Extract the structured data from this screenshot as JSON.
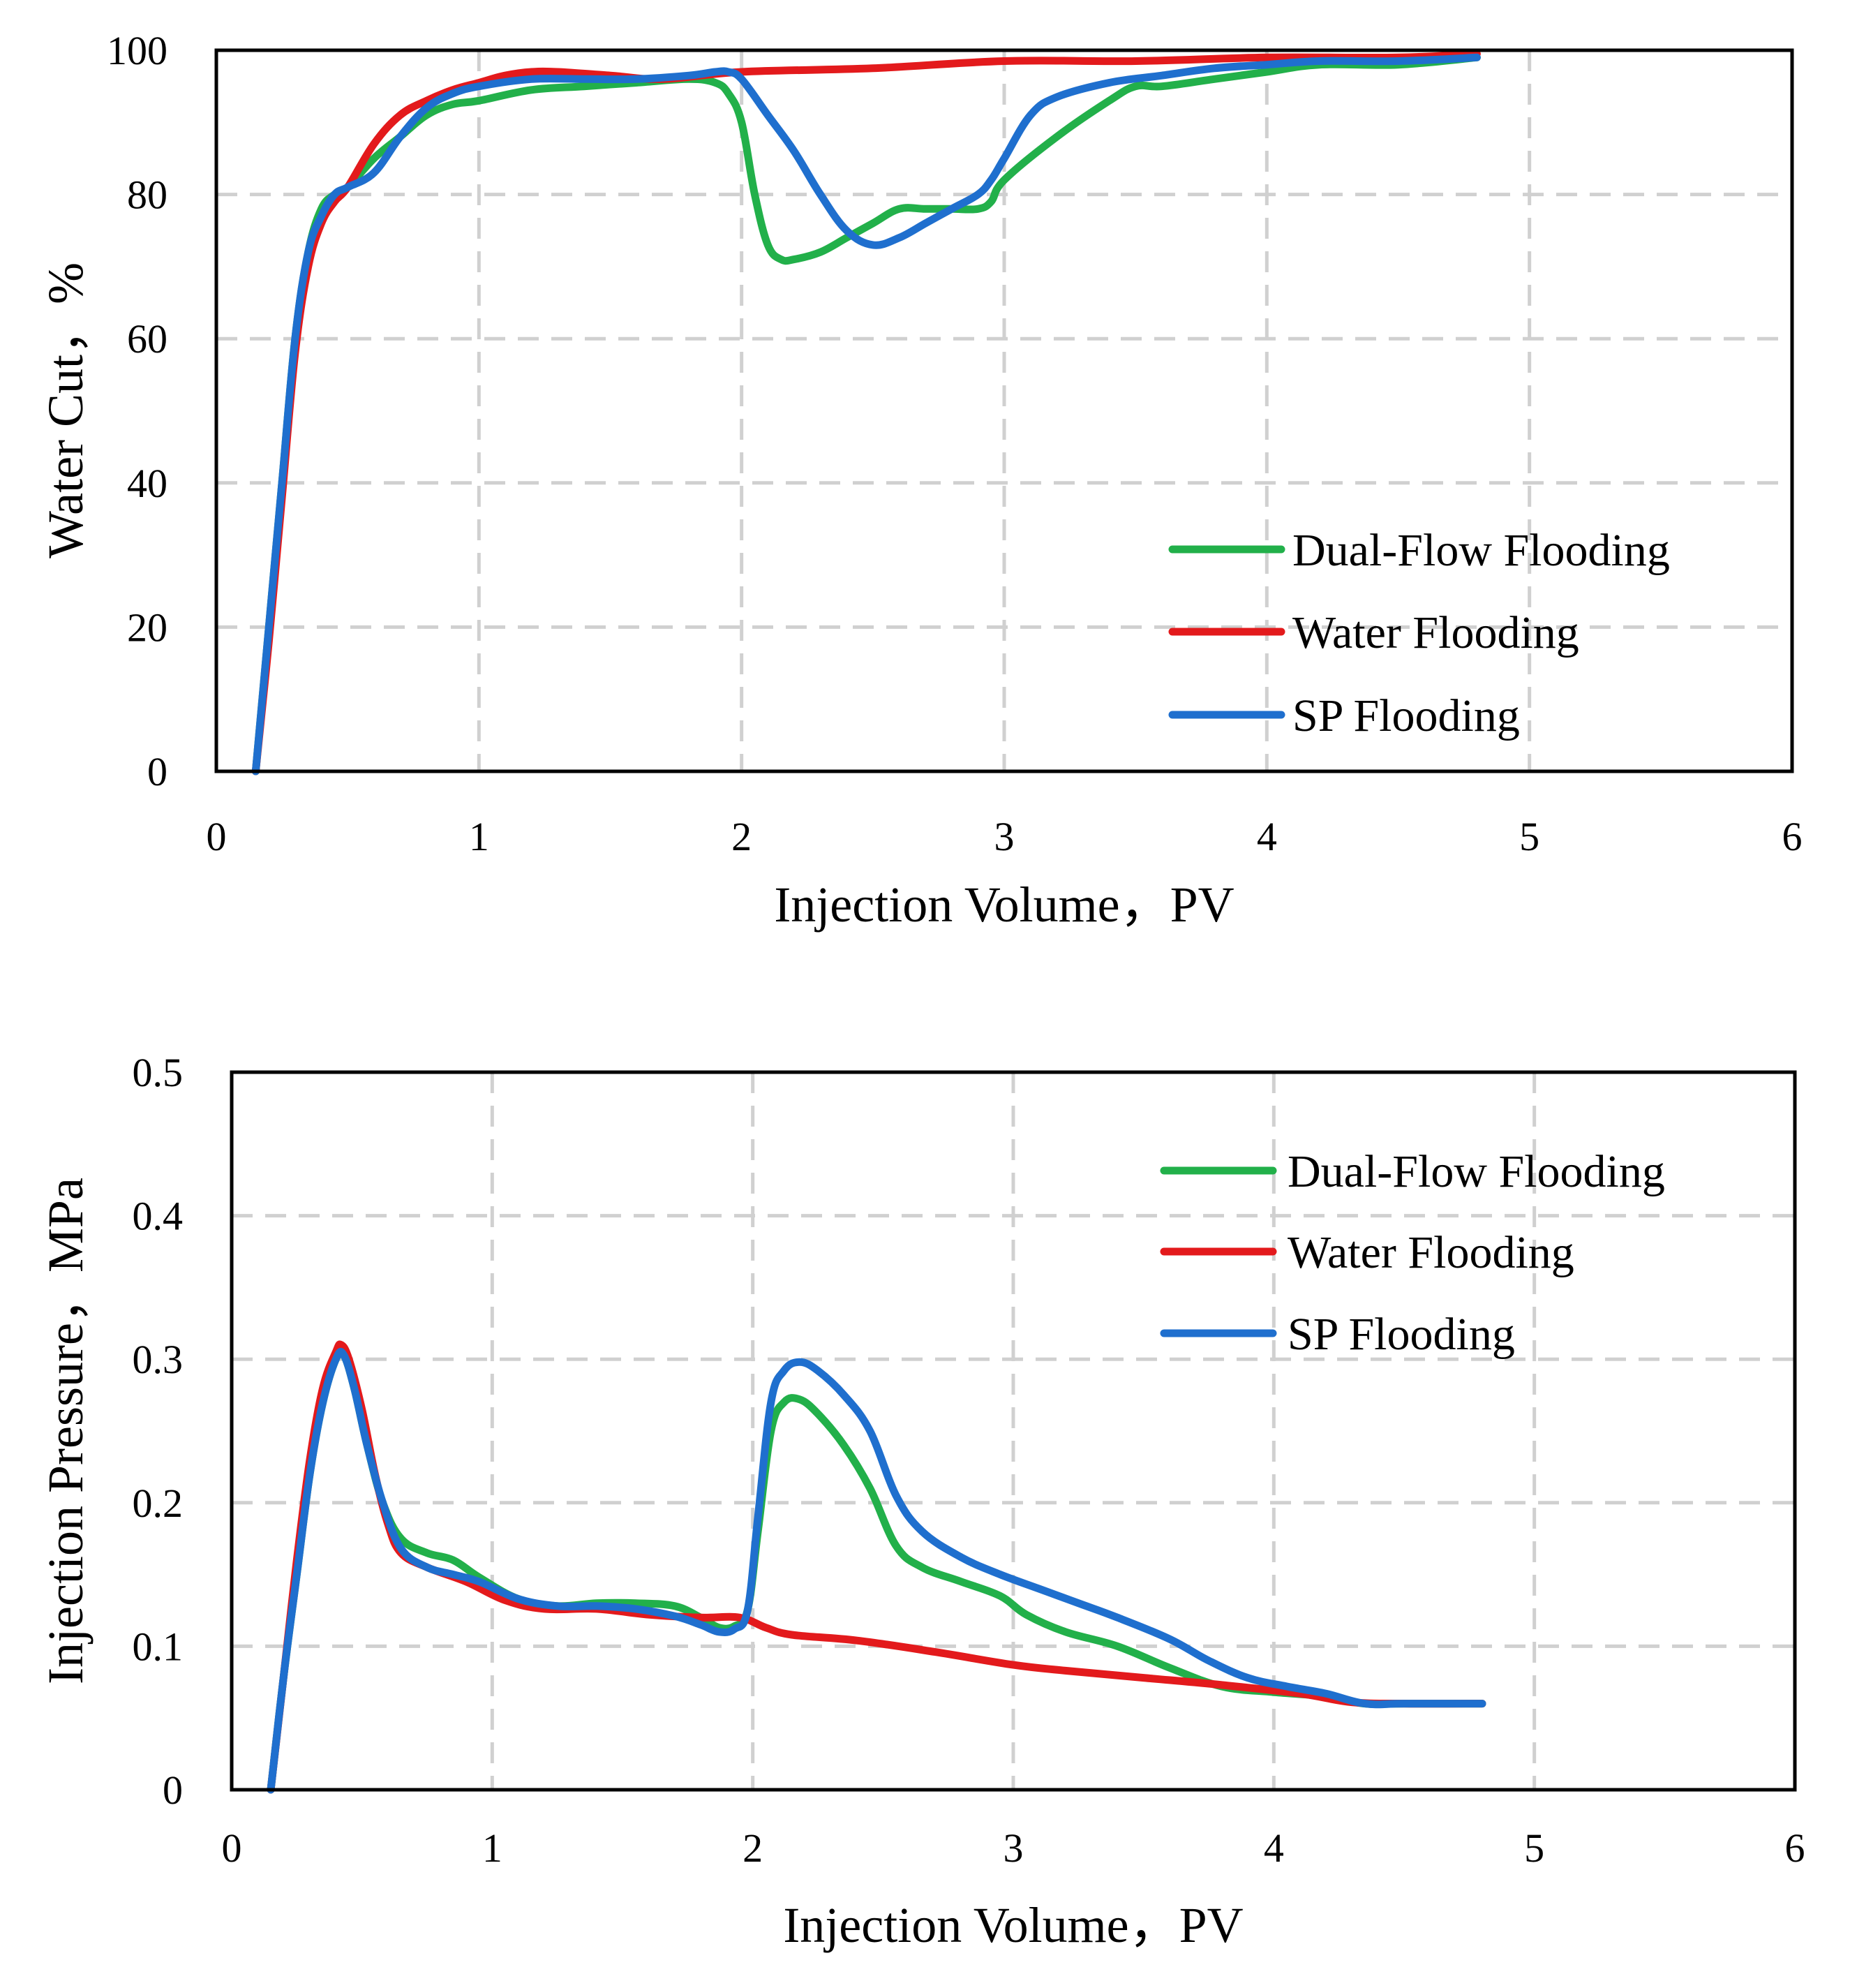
{
  "colors": {
    "dual": "#22b04a",
    "water": "#e31a1c",
    "sp": "#1f6fce"
  },
  "chart_data": [
    {
      "type": "line",
      "title": "",
      "xlabel": "Injection Volume，PV",
      "ylabel": "Water Cut，%",
      "xlim": [
        0,
        6
      ],
      "ylim": [
        0,
        100
      ],
      "xticks": [
        "0",
        "1",
        "2",
        "3",
        "4",
        "5",
        "6"
      ],
      "yticks": [
        "0",
        "20",
        "40",
        "60",
        "80",
        "100"
      ],
      "xtick_values": [
        0,
        1,
        2,
        3,
        4,
        5,
        6
      ],
      "ytick_values": [
        0,
        20,
        40,
        60,
        80,
        100
      ],
      "grid": true,
      "legend_position": "right",
      "series": [
        {
          "name": "Dual-Flow Flooding",
          "key": "dual",
          "x": [
            0.15,
            0.2,
            0.25,
            0.3,
            0.35,
            0.4,
            0.45,
            0.5,
            0.6,
            0.7,
            0.8,
            0.9,
            1.0,
            1.2,
            1.4,
            1.6,
            1.8,
            1.9,
            1.95,
            2.0,
            2.05,
            2.1,
            2.15,
            2.2,
            2.3,
            2.4,
            2.5,
            2.6,
            2.7,
            2.8,
            2.9,
            2.95,
            3.0,
            3.2,
            3.4,
            3.5,
            3.6,
            3.8,
            4.0,
            4.2,
            4.5,
            4.8
          ],
          "y": [
            0,
            20,
            40,
            60,
            72,
            78,
            80,
            81,
            85,
            88,
            91,
            92.5,
            93,
            94.5,
            95,
            95.5,
            96,
            95.5,
            94,
            90,
            80,
            73,
            71,
            71,
            72,
            74,
            76,
            78,
            78,
            78,
            78,
            79,
            82,
            88,
            93,
            95,
            95,
            96,
            97,
            98,
            98,
            99
          ]
        },
        {
          "name": "Water Flooding",
          "key": "water",
          "x": [
            0.15,
            0.2,
            0.25,
            0.3,
            0.35,
            0.4,
            0.45,
            0.5,
            0.6,
            0.7,
            0.8,
            0.9,
            1.0,
            1.1,
            1.2,
            1.3,
            1.5,
            1.7,
            2.0,
            2.5,
            3.0,
            3.5,
            4.0,
            4.5,
            4.8
          ],
          "y": [
            0,
            18,
            38,
            58,
            70,
            76,
            79,
            81,
            87,
            91,
            93,
            94.5,
            95.5,
            96.5,
            97,
            97,
            96.5,
            96,
            97,
            97.5,
            98.5,
            98.5,
            99,
            99,
            99.5
          ]
        },
        {
          "name": "SP Flooding",
          "key": "sp",
          "x": [
            0.15,
            0.2,
            0.25,
            0.3,
            0.35,
            0.4,
            0.45,
            0.5,
            0.6,
            0.7,
            0.8,
            0.9,
            1.0,
            1.2,
            1.4,
            1.6,
            1.8,
            1.9,
            1.95,
            2.0,
            2.1,
            2.2,
            2.3,
            2.4,
            2.5,
            2.6,
            2.7,
            2.8,
            2.9,
            2.95,
            3.0,
            3.1,
            3.2,
            3.4,
            3.6,
            3.8,
            4.0,
            4.2,
            4.5,
            4.8
          ],
          "y": [
            0,
            20,
            40,
            60,
            72,
            77,
            80,
            81,
            83,
            88,
            92,
            94,
            95,
            96,
            96,
            96,
            96.5,
            97,
            97,
            96,
            91,
            86,
            80,
            75,
            73,
            74,
            76,
            78,
            80,
            82,
            85,
            91,
            93.5,
            95.5,
            96.5,
            97.5,
            98,
            98.5,
            98.5,
            99
          ]
        }
      ]
    },
    {
      "type": "line",
      "title": "",
      "xlabel": "Injection Volume，PV",
      "ylabel": "Injection Pressure，MPa",
      "xlim": [
        0,
        6
      ],
      "ylim": [
        0,
        0.5
      ],
      "xticks": [
        "0",
        "1",
        "2",
        "3",
        "4",
        "5",
        "6"
      ],
      "yticks": [
        "0",
        "0.1",
        "0.2",
        "0.3",
        "0.4",
        "0.5"
      ],
      "xtick_values": [
        0,
        1,
        2,
        3,
        4,
        5,
        6
      ],
      "ytick_values": [
        0,
        0.1,
        0.2,
        0.3,
        0.4,
        0.5
      ],
      "grid": true,
      "legend_position": "top-right",
      "series": [
        {
          "name": "Dual-Flow Flooding",
          "key": "dual",
          "x": [
            0.15,
            0.2,
            0.25,
            0.3,
            0.35,
            0.4,
            0.43,
            0.47,
            0.52,
            0.58,
            0.65,
            0.75,
            0.85,
            0.95,
            1.1,
            1.25,
            1.4,
            1.55,
            1.7,
            1.8,
            1.87,
            1.93,
            1.98,
            2.02,
            2.07,
            2.12,
            2.18,
            2.25,
            2.35,
            2.45,
            2.55,
            2.65,
            2.8,
            2.95,
            3.05,
            3.2,
            3.4,
            3.6,
            3.8,
            4.0,
            4.2,
            4.35,
            4.5,
            4.8
          ],
          "y": [
            0,
            0.08,
            0.15,
            0.22,
            0.27,
            0.3,
            0.303,
            0.28,
            0.24,
            0.2,
            0.175,
            0.165,
            0.16,
            0.148,
            0.133,
            0.128,
            0.13,
            0.13,
            0.128,
            0.12,
            0.113,
            0.114,
            0.125,
            0.18,
            0.25,
            0.27,
            0.272,
            0.262,
            0.24,
            0.21,
            0.17,
            0.155,
            0.145,
            0.135,
            0.122,
            0.11,
            0.1,
            0.085,
            0.072,
            0.068,
            0.065,
            0.06,
            0.06,
            0.06
          ]
        },
        {
          "name": "Water Flooding",
          "key": "water",
          "x": [
            0.15,
            0.2,
            0.25,
            0.3,
            0.35,
            0.4,
            0.42,
            0.45,
            0.5,
            0.55,
            0.6,
            0.65,
            0.75,
            0.9,
            1.05,
            1.2,
            1.4,
            1.6,
            1.8,
            1.95,
            2.05,
            2.15,
            2.4,
            2.7,
            3.0,
            3.2,
            3.5,
            3.8,
            4.1,
            4.3,
            4.5,
            4.8
          ],
          "y": [
            0,
            0.08,
            0.16,
            0.23,
            0.28,
            0.305,
            0.31,
            0.3,
            0.265,
            0.22,
            0.185,
            0.165,
            0.155,
            0.145,
            0.132,
            0.126,
            0.126,
            0.122,
            0.12,
            0.12,
            0.113,
            0.108,
            0.104,
            0.096,
            0.087,
            0.083,
            0.078,
            0.073,
            0.067,
            0.061,
            0.06,
            0.06
          ]
        },
        {
          "name": "SP Flooding",
          "key": "sp",
          "x": [
            0.15,
            0.2,
            0.25,
            0.3,
            0.35,
            0.4,
            0.43,
            0.47,
            0.52,
            0.58,
            0.65,
            0.75,
            0.85,
            0.95,
            1.1,
            1.25,
            1.4,
            1.55,
            1.7,
            1.8,
            1.87,
            1.93,
            1.98,
            2.02,
            2.07,
            2.12,
            2.18,
            2.25,
            2.35,
            2.45,
            2.55,
            2.65,
            2.8,
            2.95,
            3.1,
            3.25,
            3.4,
            3.6,
            3.75,
            3.9,
            4.05,
            4.2,
            4.35,
            4.5,
            4.8
          ],
          "y": [
            0,
            0.08,
            0.15,
            0.22,
            0.27,
            0.3,
            0.303,
            0.28,
            0.24,
            0.2,
            0.168,
            0.155,
            0.15,
            0.145,
            0.133,
            0.128,
            0.128,
            0.126,
            0.121,
            0.115,
            0.11,
            0.112,
            0.125,
            0.19,
            0.27,
            0.292,
            0.298,
            0.292,
            0.275,
            0.25,
            0.205,
            0.18,
            0.162,
            0.15,
            0.14,
            0.13,
            0.12,
            0.105,
            0.09,
            0.078,
            0.072,
            0.067,
            0.06,
            0.06,
            0.06
          ]
        }
      ]
    }
  ]
}
